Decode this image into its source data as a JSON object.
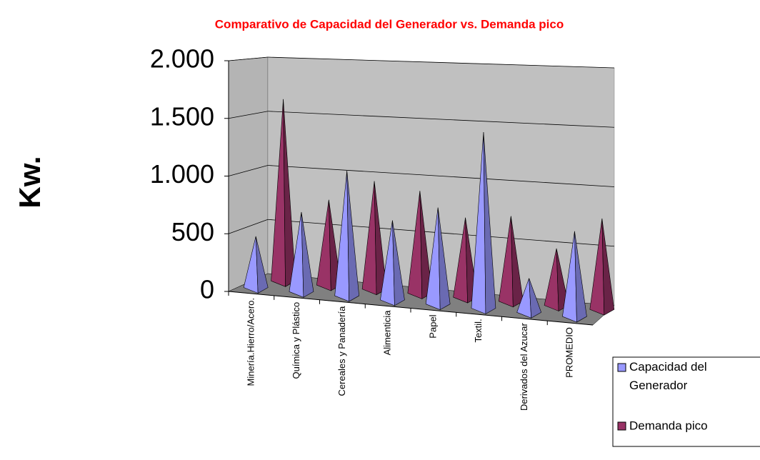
{
  "chart_data": {
    "type": "pyramid3d",
    "title": "Comparativo de Capacidad del Generador vs. Demanda pico",
    "y_label": "Kw.",
    "categories": [
      "Minería.Hierro/Acero.",
      "Química y Plástico",
      "Cereales y Panadería",
      "Alimenticia",
      "Papel",
      "Textil.",
      "Derivados del Azucar",
      "PROMEDIO"
    ],
    "series": [
      {
        "name": "Capacidad del Generador",
        "color": "#9999ff",
        "values": [
          450,
          700,
          1100,
          700,
          850,
          1550,
          300,
          750
        ]
      },
      {
        "name": "Demanda pico",
        "color": "#993366",
        "values": [
          1600,
          750,
          950,
          900,
          700,
          750,
          500,
          800
        ]
      }
    ],
    "ylim": [
      0,
      2000
    ],
    "yticks": [
      0,
      500,
      {
        "value": 1000,
        "label": "1.000"
      },
      {
        "value": 1500,
        "label": "1.500"
      },
      {
        "value": 2000,
        "label": "2.000"
      }
    ],
    "grid": true
  }
}
